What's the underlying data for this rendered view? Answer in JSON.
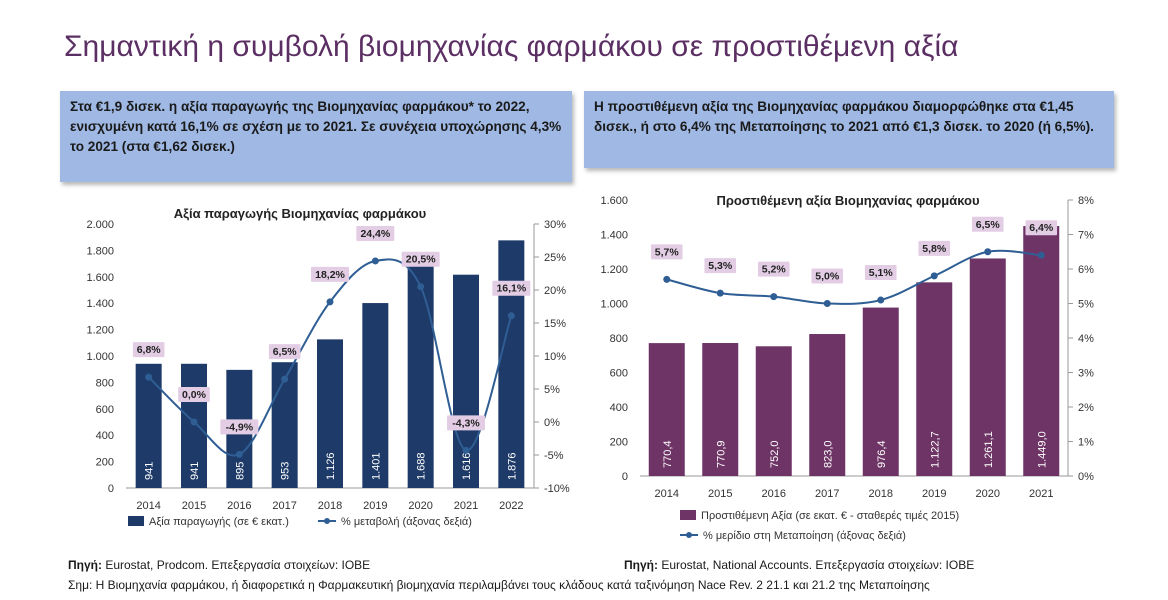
{
  "title": "Σημαντική η συμβολή βιομηχανίας φαρμάκου σε προστιθέμενη αξία",
  "callouts": {
    "left": "Στα €1,9 δισεκ. η αξία παραγωγής της Βιομηχανίας φαρμάκου* το 2022, ενισχυμένη κατά 16,1% σε σχέση με το 2021. Σε συνέχεια υποχώρησης 4,3% το 2021 (στα €1,62 δισεκ.)",
    "right": "Η προστιθέμενη αξία της Βιομηχανίας φαρμάκου διαμορφώθηκε στα €1,45 δισεκ., ή στο 6,4% της Μεταποίησης το 2021 από €1,3 δισεκ. το 2020 (ή 6,5%)."
  },
  "footer": {
    "source_label": "Πηγή:",
    "source_left": " Eurostat, Prodcom. Επεξεργασία στοιχείων: ΙΟΒΕ",
    "source_right": " Eurostat, National Accounts. Επεξεργασία στοιχείων: ΙΟΒΕ",
    "note": "Σημ: Η Βιομηχανία φαρμάκου, ή διαφορετικά η Φαρμακευτική βιομηχανία περιλαμβάνει τους κλάδους κατά ταξινόμηση Nace Rev. 2 21.1 και 21.2 της Μεταποίησης"
  },
  "colors": {
    "navy": "#1e3a68",
    "plum": "#6e3466",
    "line": "#2f5e94",
    "label_bg": "#e3cde5"
  },
  "chart_data": [
    {
      "type": "bar",
      "title": "Αξία παραγωγής Βιομηχανίας φαρμάκου",
      "categories": [
        "2014",
        "2015",
        "2016",
        "2017",
        "2018",
        "2019",
        "2020",
        "2021",
        "2022"
      ],
      "series": [
        {
          "name": "Αξία παραγωγής (σε € εκατ.)",
          "axis": "left",
          "values": [
            941,
            941,
            895,
            953,
            1126,
            1401,
            1688,
            1616,
            1876
          ],
          "value_labels": [
            "941",
            "941",
            "895",
            "953",
            "1.126",
            "1.401",
            "1.688",
            "1.616",
            "1.876"
          ]
        },
        {
          "name": "% μεταβολή (άξονας δεξιά)",
          "axis": "right",
          "type": "line",
          "values": [
            6.8,
            0.0,
            -4.9,
            6.5,
            18.2,
            24.4,
            20.5,
            -4.3,
            16.1
          ],
          "value_labels": [
            "6,8%",
            "0,0%",
            "-4,9%",
            "6,5%",
            "18,2%",
            "24,4%",
            "20,5%",
            "-4,3%",
            "16,1%"
          ]
        }
      ],
      "ylim": [
        0,
        2000
      ],
      "yticks": [
        0,
        200,
        400,
        600,
        800,
        1000,
        1200,
        1400,
        1600,
        1800,
        2000
      ],
      "ytick_labels": [
        "0",
        "200",
        "400",
        "600",
        "800",
        "1.000",
        "1.200",
        "1.400",
        "1.600",
        "1.800",
        "2.000"
      ],
      "y2lim": [
        -10,
        30
      ],
      "y2ticks": [
        -10,
        -5,
        0,
        5,
        10,
        15,
        20,
        25,
        30
      ],
      "y2tick_labels": [
        "-10%",
        "-5%",
        "0%",
        "5%",
        "10%",
        "15%",
        "20%",
        "25%",
        "30%"
      ]
    },
    {
      "type": "bar",
      "title": "Προστιθέμενη αξία Βιομηχανίας φαρμάκου",
      "categories": [
        "2014",
        "2015",
        "2016",
        "2017",
        "2018",
        "2019",
        "2020",
        "2021"
      ],
      "series": [
        {
          "name": "Προστιθέμενη Αξία (σε εκατ. € - σταθερές τιμές 2015)",
          "axis": "left",
          "values": [
            770.4,
            770.9,
            752.0,
            823.0,
            976.4,
            1122.7,
            1261.1,
            1449.0
          ],
          "value_labels": [
            "770,4",
            "770,9",
            "752,0",
            "823,0",
            "976,4",
            "1.122,7",
            "1.261,1",
            "1.449,0"
          ]
        },
        {
          "name": "% μερίδιο στη Μεταποίηση (άξονας δεξιά)",
          "axis": "right",
          "type": "line",
          "values": [
            5.7,
            5.3,
            5.2,
            5.0,
            5.1,
            5.8,
            6.5,
            6.4
          ],
          "value_labels": [
            "5,7%",
            "5,3%",
            "5,2%",
            "5,0%",
            "5,1%",
            "5,8%",
            "6,5%",
            "6,4%"
          ]
        }
      ],
      "ylim": [
        0,
        1600
      ],
      "yticks": [
        0,
        200,
        400,
        600,
        800,
        1000,
        1200,
        1400,
        1600
      ],
      "ytick_labels": [
        "0",
        "200",
        "400",
        "600",
        "800",
        "1.000",
        "1.200",
        "1.400",
        "1.600"
      ],
      "y2lim": [
        0,
        8
      ],
      "y2ticks": [
        0,
        1,
        2,
        3,
        4,
        5,
        6,
        7,
        8
      ],
      "y2tick_labels": [
        "0%",
        "1%",
        "2%",
        "3%",
        "4%",
        "5%",
        "6%",
        "7%",
        "8%"
      ]
    }
  ]
}
